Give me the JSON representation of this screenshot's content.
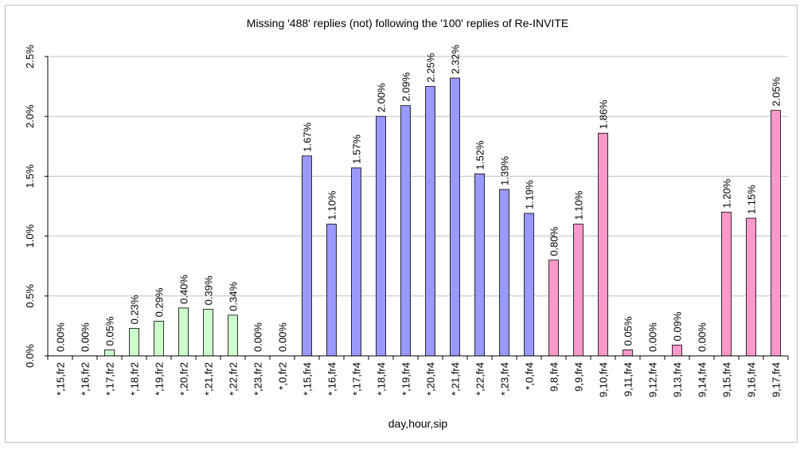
{
  "chart_data": {
    "type": "bar",
    "title": "Missing '488' replies (not) following the '100' replies of Re-INVITE",
    "xlabel": "day,hour,sip",
    "ylabel": "",
    "ylim": [
      0,
      2.5
    ],
    "yticks": [
      "0.0%",
      "0.5%",
      "1.0%",
      "1.5%",
      "2.0%",
      "2.5%"
    ],
    "grid": true,
    "legend": "none",
    "categories": [
      "*,15,fr2",
      "*,16,fr2",
      "*,17,fr2",
      "*,18,fr2",
      "*,19,fr2",
      "*,20,fr2",
      "*,21,fr2",
      "*,22,fr2",
      "*,23,fr2",
      "*,0,fr2",
      "*,15,fr4",
      "*,16,fr4",
      "*,17,fr4",
      "*,18,fr4",
      "*,19,fr4",
      "*,20,fr4",
      "*,21,fr4",
      "*,22,fr4",
      "*,23,fr4",
      "*,0,fr4",
      "9,8,fr4",
      "9,9,fr4",
      "9,10,fr4",
      "9,11,fr4",
      "9,12,fr4",
      "9,13,fr4",
      "9,14,fr4",
      "9,15,fr4",
      "9,16,fr4",
      "9,17,fr4"
    ],
    "values": [
      0.0,
      0.0,
      0.05,
      0.23,
      0.29,
      0.4,
      0.39,
      0.34,
      0.0,
      0.0,
      1.67,
      1.1,
      1.57,
      2.0,
      2.09,
      2.25,
      2.32,
      1.52,
      1.39,
      1.19,
      0.8,
      1.1,
      1.86,
      0.05,
      0.0,
      0.09,
      0.0,
      1.2,
      1.15,
      2.05
    ],
    "labels": [
      "0.00%",
      "0.00%",
      "0.05%",
      "0.23%",
      "0.29%",
      "0.40%",
      "0.39%",
      "0.34%",
      "0.00%",
      "0.00%",
      "1.67%",
      "1.10%",
      "1.57%",
      "2.00%",
      "2.09%",
      "2.25%",
      "2.32%",
      "1.52%",
      "1.39%",
      "1.19%",
      "0.80%",
      "1.10%",
      "1.86%",
      "0.05%",
      "0.00%",
      "0.09%",
      "0.00%",
      "1.20%",
      "1.15%",
      "2.05%"
    ],
    "bar_colors": [
      "#ccffcc",
      "#ccffcc",
      "#ccffcc",
      "#ccffcc",
      "#ccffcc",
      "#ccffcc",
      "#ccffcc",
      "#ccffcc",
      "#ccffcc",
      "#ccffcc",
      "#9999ff",
      "#9999ff",
      "#9999ff",
      "#9999ff",
      "#9999ff",
      "#9999ff",
      "#9999ff",
      "#9999ff",
      "#9999ff",
      "#9999ff",
      "#ff99cc",
      "#ff99cc",
      "#ff99cc",
      "#ff99cc",
      "#ff99cc",
      "#ff99cc",
      "#ff99cc",
      "#ff99cc",
      "#ff99cc",
      "#ff99cc"
    ],
    "bar_edge_color": "#000000",
    "grid_color": "#c0c0c0"
  }
}
